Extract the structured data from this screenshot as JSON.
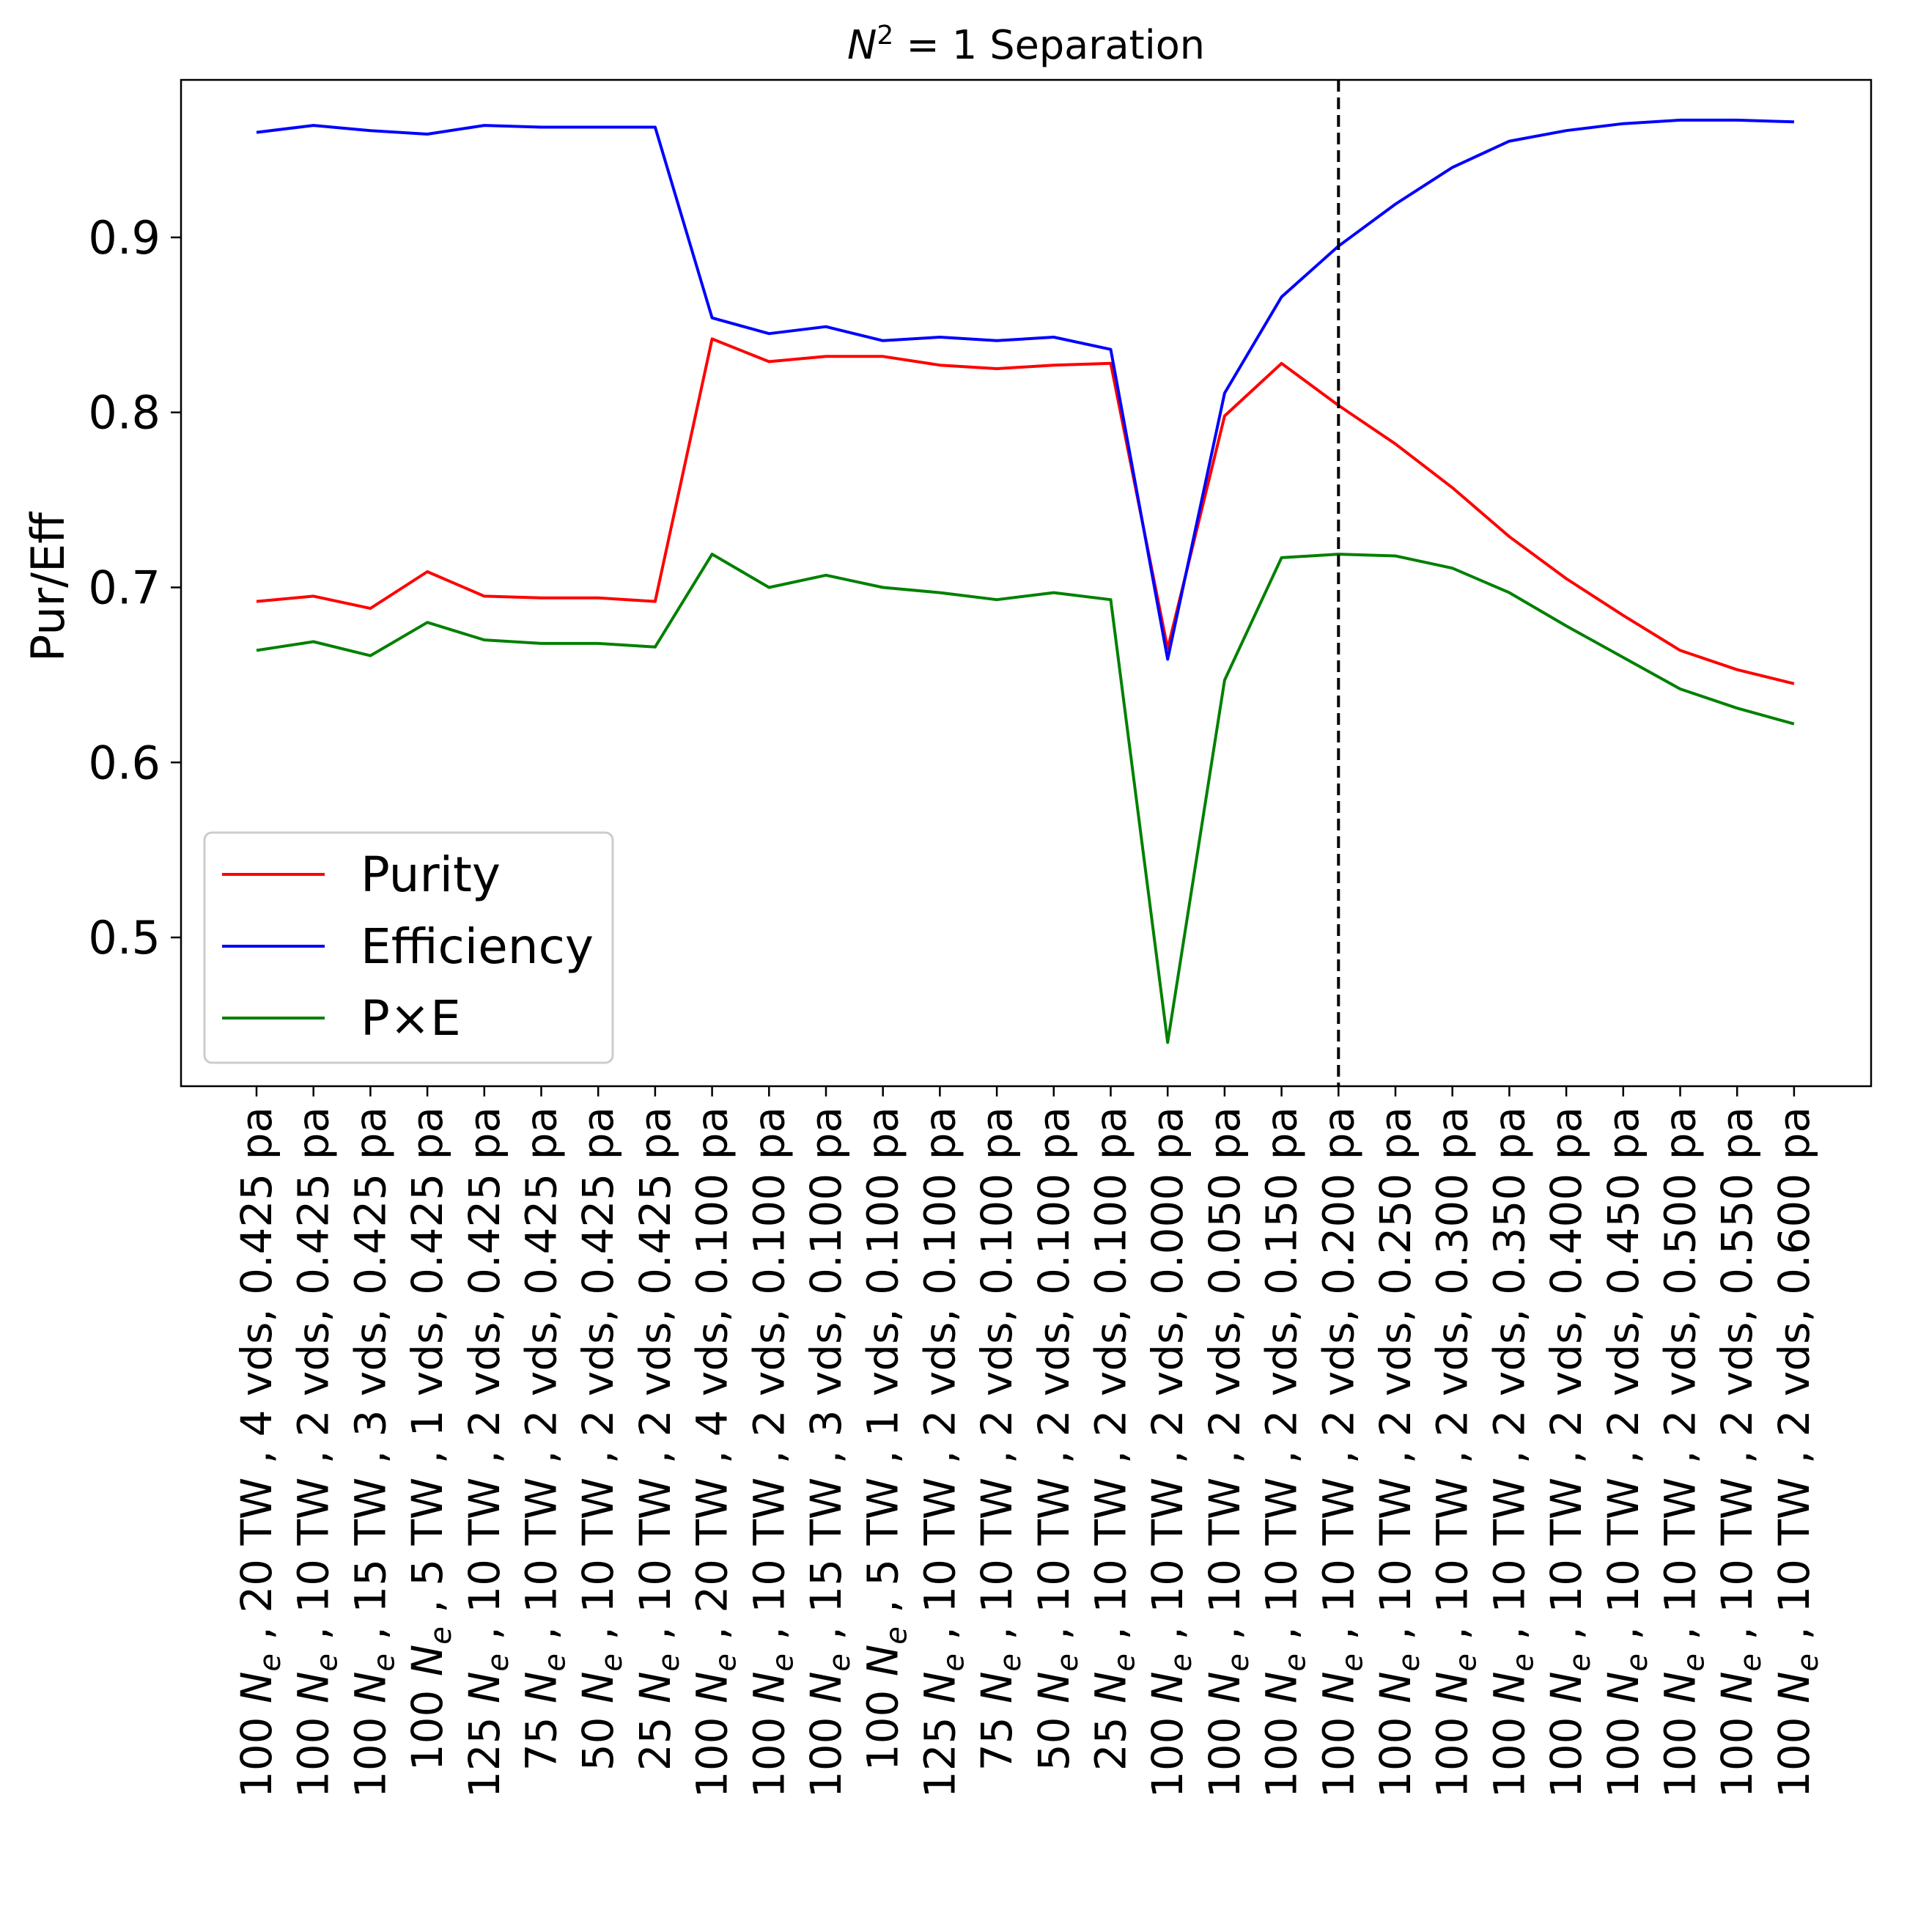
{
  "chart_data": {
    "type": "line",
    "title_prefix": "N",
    "title_superscript": "2",
    "title_suffix": " = 1 Separation",
    "xlabel": "",
    "ylabel": "Pur/Eff",
    "ylim": [
      0.415,
      0.99
    ],
    "yticks": [
      "0.5",
      "0.6",
      "0.7",
      "0.8",
      "0.9"
    ],
    "ytick_values": [
      0.5,
      0.6,
      0.7,
      0.8,
      0.9
    ],
    "categories": [
      {
        "pre": "100 ",
        "sym": "N",
        "sub": "e",
        "post": " , 20 TW , 4 vds, 0.425 pa"
      },
      {
        "pre": "100 ",
        "sym": "N",
        "sub": "e",
        "post": " , 10 TW , 2 vds, 0.425 pa"
      },
      {
        "pre": "100 ",
        "sym": "N",
        "sub": "e",
        "post": " , 15 TW , 3 vds, 0.425 pa"
      },
      {
        "pre": "100 ",
        "sym": "N",
        "sub": "e",
        "post": " , 5 TW , 1 vds, 0.425 pa"
      },
      {
        "pre": "125 ",
        "sym": "N",
        "sub": "e",
        "post": " , 10 TW , 2 vds, 0.425 pa"
      },
      {
        "pre": "75 ",
        "sym": "N",
        "sub": "e",
        "post": " , 10 TW , 2 vds, 0.425 pa"
      },
      {
        "pre": "50 ",
        "sym": "N",
        "sub": "e",
        "post": " , 10 TW , 2 vds, 0.425 pa"
      },
      {
        "pre": "25 ",
        "sym": "N",
        "sub": "e",
        "post": " , 10 TW , 2 vds, 0.425 pa"
      },
      {
        "pre": "100 ",
        "sym": "N",
        "sub": "e",
        "post": " , 20 TW , 4 vds, 0.100 pa"
      },
      {
        "pre": "100 ",
        "sym": "N",
        "sub": "e",
        "post": " , 10 TW , 2 vds, 0.100 pa"
      },
      {
        "pre": "100 ",
        "sym": "N",
        "sub": "e",
        "post": " , 15 TW , 3 vds, 0.100 pa"
      },
      {
        "pre": "100 ",
        "sym": "N",
        "sub": "e",
        "post": " , 5 TW , 1 vds, 0.100 pa"
      },
      {
        "pre": "125 ",
        "sym": "N",
        "sub": "e",
        "post": " , 10 TW , 2 vds, 0.100 pa"
      },
      {
        "pre": "75 ",
        "sym": "N",
        "sub": "e",
        "post": " , 10 TW , 2 vds, 0.100 pa"
      },
      {
        "pre": "50 ",
        "sym": "N",
        "sub": "e",
        "post": " , 10 TW , 2 vds, 0.100 pa"
      },
      {
        "pre": "25 ",
        "sym": "N",
        "sub": "e",
        "post": " , 10 TW , 2 vds, 0.100 pa"
      },
      {
        "pre": "100 ",
        "sym": "N",
        "sub": "e",
        "post": " , 10 TW , 2 vds, 0.000 pa"
      },
      {
        "pre": "100 ",
        "sym": "N",
        "sub": "e",
        "post": " , 10 TW , 2 vds, 0.050 pa"
      },
      {
        "pre": "100 ",
        "sym": "N",
        "sub": "e",
        "post": " , 10 TW , 2 vds, 0.150 pa"
      },
      {
        "pre": "100 ",
        "sym": "N",
        "sub": "e",
        "post": " , 10 TW , 2 vds, 0.200 pa"
      },
      {
        "pre": "100 ",
        "sym": "N",
        "sub": "e",
        "post": " , 10 TW , 2 vds, 0.250 pa"
      },
      {
        "pre": "100 ",
        "sym": "N",
        "sub": "e",
        "post": " , 10 TW , 2 vds, 0.300 pa"
      },
      {
        "pre": "100 ",
        "sym": "N",
        "sub": "e",
        "post": " , 10 TW , 2 vds, 0.350 pa"
      },
      {
        "pre": "100 ",
        "sym": "N",
        "sub": "e",
        "post": " , 10 TW , 2 vds, 0.400 pa"
      },
      {
        "pre": "100 ",
        "sym": "N",
        "sub": "e",
        "post": " , 10 TW , 2 vds, 0.450 pa"
      },
      {
        "pre": "100 ",
        "sym": "N",
        "sub": "e",
        "post": " , 10 TW , 2 vds, 0.500 pa"
      },
      {
        "pre": "100 ",
        "sym": "N",
        "sub": "e",
        "post": " , 10 TW , 2 vds, 0.550 pa"
      },
      {
        "pre": "100 ",
        "sym": "N",
        "sub": "e",
        "post": " , 10 TW , 2 vds, 0.600 pa"
      }
    ],
    "series": [
      {
        "name": "Purity",
        "color": "#ff0000",
        "values": [
          0.692,
          0.695,
          0.688,
          0.709,
          0.695,
          0.694,
          0.694,
          0.692,
          0.842,
          0.829,
          0.832,
          0.832,
          0.827,
          0.825,
          0.827,
          0.828,
          0.665,
          0.798,
          0.828,
          0.804,
          0.782,
          0.757,
          0.729,
          0.705,
          0.684,
          0.664,
          0.653,
          0.645
        ]
      },
      {
        "name": "Efficiency",
        "color": "#0000ff",
        "values": [
          0.96,
          0.964,
          0.961,
          0.959,
          0.964,
          0.963,
          0.963,
          0.963,
          0.854,
          0.845,
          0.849,
          0.841,
          0.843,
          0.841,
          0.843,
          0.836,
          0.659,
          0.811,
          0.866,
          0.895,
          0.919,
          0.94,
          0.955,
          0.961,
          0.965,
          0.967,
          0.967,
          0.966
        ]
      },
      {
        "name": "P×E",
        "color": "#008000",
        "values": [
          0.664,
          0.669,
          0.661,
          0.68,
          0.67,
          0.668,
          0.668,
          0.666,
          0.719,
          0.7,
          0.707,
          0.7,
          0.697,
          0.693,
          0.697,
          0.693,
          0.44,
          0.647,
          0.717,
          0.719,
          0.718,
          0.711,
          0.697,
          0.678,
          0.66,
          0.642,
          0.631,
          0.622
        ]
      }
    ],
    "vline_index": 19,
    "legend_placement": "lower-left",
    "grid": false
  }
}
